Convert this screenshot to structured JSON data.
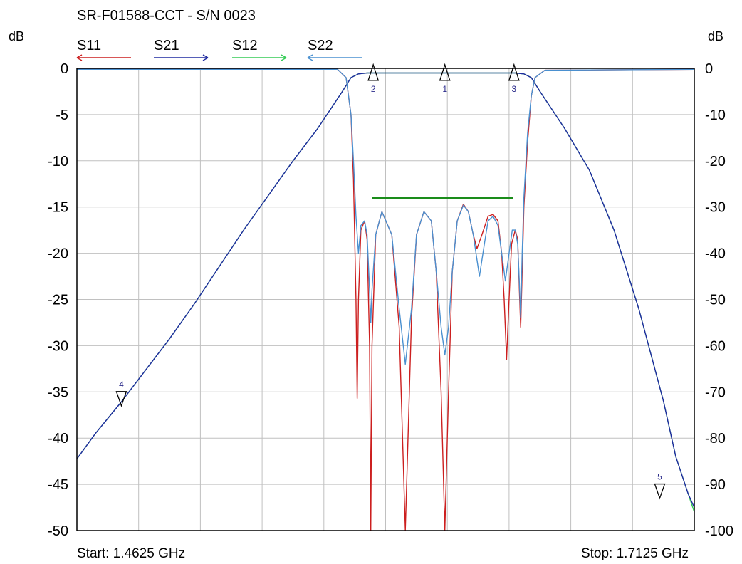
{
  "title": "SR-F01588-CCT - S/N 0023",
  "left_unit": "dB",
  "right_unit": "dB",
  "start_label": "Start: 1.4625 GHz",
  "stop_label": "Stop: 1.7125 GHz",
  "colors": {
    "S11": "#cc1f1f",
    "S21": "#1f2aa0",
    "S12": "#33cc55",
    "S22": "#4a90d0",
    "spec_line": "#1a8c1a",
    "grid": "#c0c0c0"
  },
  "chart_data": {
    "type": "line",
    "title": "SR-F01588-CCT - S/N 0023",
    "x_range_ghz": [
      1.4625,
      1.7125
    ],
    "y_left": {
      "label": "dB",
      "range": [
        -50,
        0
      ],
      "ticks": [
        "0",
        "-5",
        "-10",
        "-15",
        "-20",
        "-25",
        "-30",
        "-35",
        "-40",
        "-45",
        "-50"
      ]
    },
    "y_right": {
      "label": "dB",
      "range": [
        -100,
        0
      ],
      "ticks": [
        "0",
        "-10",
        "-20",
        "-30",
        "-40",
        "-50",
        "-60",
        "-70",
        "-80",
        "-90",
        "-100"
      ]
    },
    "grid": true,
    "legend": [
      {
        "name": "S11",
        "color": "#cc1f1f",
        "direction": "left"
      },
      {
        "name": "S21",
        "color": "#1f2aa0",
        "direction": "right"
      },
      {
        "name": "S12",
        "color": "#33cc55",
        "direction": "right"
      },
      {
        "name": "S22",
        "color": "#4a90d0",
        "direction": "left"
      }
    ],
    "series": [
      {
        "name": "S11",
        "axis": "left",
        "color": "#cc1f1f",
        "points": [
          [
            1.4625,
            -0.1
          ],
          [
            1.568,
            -0.1
          ],
          [
            1.5715,
            -1.0
          ],
          [
            1.5735,
            -5.0
          ],
          [
            1.5745,
            -12.0
          ],
          [
            1.5755,
            -25.0
          ],
          [
            1.576,
            -35.7
          ],
          [
            1.5765,
            -25.0
          ],
          [
            1.5775,
            -17.5
          ],
          [
            1.579,
            -16.5
          ],
          [
            1.58,
            -18.5
          ],
          [
            1.581,
            -30.0
          ],
          [
            1.5815,
            -50.0
          ],
          [
            1.582,
            -30.0
          ],
          [
            1.5835,
            -18.0
          ],
          [
            1.586,
            -15.5
          ],
          [
            1.59,
            -18.0
          ],
          [
            1.593,
            -28.0
          ],
          [
            1.5955,
            -50.0
          ],
          [
            1.598,
            -27.0
          ],
          [
            1.6,
            -18.0
          ],
          [
            1.603,
            -15.5
          ],
          [
            1.606,
            -16.5
          ],
          [
            1.608,
            -22.0
          ],
          [
            1.61,
            -35.0
          ],
          [
            1.6115,
            -50.0
          ],
          [
            1.613,
            -35.0
          ],
          [
            1.6145,
            -22.0
          ],
          [
            1.6165,
            -16.5
          ],
          [
            1.619,
            -14.7
          ],
          [
            1.621,
            -15.5
          ],
          [
            1.623,
            -18.0
          ],
          [
            1.6245,
            -19.5
          ],
          [
            1.6265,
            -18.0
          ],
          [
            1.629,
            -16.0
          ],
          [
            1.631,
            -15.8
          ],
          [
            1.633,
            -16.5
          ],
          [
            1.6345,
            -20.0
          ],
          [
            1.6355,
            -25.0
          ],
          [
            1.6365,
            -31.5
          ],
          [
            1.6375,
            -25.0
          ],
          [
            1.6385,
            -19.0
          ],
          [
            1.64,
            -17.5
          ],
          [
            1.641,
            -18.5
          ],
          [
            1.6418,
            -25.0
          ],
          [
            1.6422,
            -28.0
          ],
          [
            1.6428,
            -22.0
          ],
          [
            1.6435,
            -15.0
          ],
          [
            1.645,
            -8.0
          ],
          [
            1.6465,
            -3.0
          ],
          [
            1.648,
            -1.0
          ],
          [
            1.652,
            -0.2
          ],
          [
            1.7125,
            -0.1
          ]
        ]
      },
      {
        "name": "S22",
        "axis": "left",
        "color": "#4a90d0",
        "points": [
          [
            1.4625,
            -0.1
          ],
          [
            1.568,
            -0.1
          ],
          [
            1.5715,
            -1.0
          ],
          [
            1.5735,
            -5.0
          ],
          [
            1.5745,
            -10.0
          ],
          [
            1.5755,
            -16.0
          ],
          [
            1.5765,
            -20.0
          ],
          [
            1.5775,
            -17.0
          ],
          [
            1.579,
            -16.5
          ],
          [
            1.58,
            -18.0
          ],
          [
            1.581,
            -24.0
          ],
          [
            1.5815,
            -27.5
          ],
          [
            1.582,
            -24.0
          ],
          [
            1.5835,
            -18.0
          ],
          [
            1.586,
            -15.5
          ],
          [
            1.59,
            -18.0
          ],
          [
            1.593,
            -26.0
          ],
          [
            1.5955,
            -32.0
          ],
          [
            1.598,
            -26.0
          ],
          [
            1.6,
            -18.0
          ],
          [
            1.603,
            -15.5
          ],
          [
            1.606,
            -16.5
          ],
          [
            1.608,
            -22.0
          ],
          [
            1.61,
            -28.0
          ],
          [
            1.6115,
            -31.0
          ],
          [
            1.613,
            -28.0
          ],
          [
            1.6145,
            -22.0
          ],
          [
            1.6165,
            -16.5
          ],
          [
            1.619,
            -14.8
          ],
          [
            1.621,
            -15.5
          ],
          [
            1.623,
            -18.0
          ],
          [
            1.6255,
            -22.5
          ],
          [
            1.6275,
            -19.0
          ],
          [
            1.629,
            -16.5
          ],
          [
            1.631,
            -16.0
          ],
          [
            1.633,
            -17.0
          ],
          [
            1.6345,
            -20.0
          ],
          [
            1.636,
            -23.0
          ],
          [
            1.6375,
            -20.0
          ],
          [
            1.6388,
            -17.5
          ],
          [
            1.64,
            -17.5
          ],
          [
            1.641,
            -19.0
          ],
          [
            1.6418,
            -24.0
          ],
          [
            1.6422,
            -27.0
          ],
          [
            1.6428,
            -20.0
          ],
          [
            1.6435,
            -14.0
          ],
          [
            1.645,
            -7.0
          ],
          [
            1.6465,
            -3.0
          ],
          [
            1.648,
            -1.0
          ],
          [
            1.652,
            -0.2
          ],
          [
            1.7125,
            -0.1
          ]
        ]
      },
      {
        "name": "S21",
        "axis": "right",
        "color": "#1f2aa0",
        "points": [
          [
            1.4625,
            -84.5
          ],
          [
            1.47,
            -79.0
          ],
          [
            1.48,
            -72.5
          ],
          [
            1.49,
            -65.5
          ],
          [
            1.5,
            -58.5
          ],
          [
            1.51,
            -51.0
          ],
          [
            1.52,
            -43.0
          ],
          [
            1.53,
            -35.0
          ],
          [
            1.54,
            -27.5
          ],
          [
            1.55,
            -20.0
          ],
          [
            1.56,
            -13.0
          ],
          [
            1.565,
            -9.0
          ],
          [
            1.57,
            -5.0
          ],
          [
            1.5735,
            -2.0
          ],
          [
            1.5765,
            -1.2
          ],
          [
            1.58,
            -1.0
          ],
          [
            1.6,
            -1.0
          ],
          [
            1.62,
            -1.0
          ],
          [
            1.64,
            -1.0
          ],
          [
            1.6435,
            -1.2
          ],
          [
            1.6465,
            -2.0
          ],
          [
            1.65,
            -5.0
          ],
          [
            1.655,
            -9.0
          ],
          [
            1.66,
            -13.0
          ],
          [
            1.67,
            -22.0
          ],
          [
            1.68,
            -35.0
          ],
          [
            1.69,
            -52.0
          ],
          [
            1.7,
            -72.0
          ],
          [
            1.705,
            -84.0
          ],
          [
            1.71,
            -92.0
          ],
          [
            1.7125,
            -95.0
          ]
        ]
      },
      {
        "name": "S12",
        "axis": "right",
        "color": "#33cc55",
        "points": [
          [
            1.4625,
            -84.5
          ],
          [
            1.47,
            -79.0
          ],
          [
            1.48,
            -72.5
          ],
          [
            1.49,
            -65.5
          ],
          [
            1.5,
            -58.5
          ],
          [
            1.51,
            -51.0
          ],
          [
            1.52,
            -43.0
          ],
          [
            1.53,
            -35.0
          ],
          [
            1.54,
            -27.5
          ],
          [
            1.55,
            -20.0
          ],
          [
            1.56,
            -13.0
          ],
          [
            1.565,
            -9.0
          ],
          [
            1.57,
            -5.0
          ],
          [
            1.5735,
            -2.0
          ],
          [
            1.5765,
            -1.2
          ],
          [
            1.58,
            -1.0
          ],
          [
            1.6,
            -1.0
          ],
          [
            1.62,
            -1.0
          ],
          [
            1.64,
            -1.0
          ],
          [
            1.6435,
            -1.2
          ],
          [
            1.6465,
            -2.0
          ],
          [
            1.65,
            -5.0
          ],
          [
            1.655,
            -9.0
          ],
          [
            1.66,
            -13.0
          ],
          [
            1.67,
            -22.0
          ],
          [
            1.68,
            -35.0
          ],
          [
            1.69,
            -52.0
          ],
          [
            1.7,
            -72.0
          ],
          [
            1.705,
            -84.0
          ],
          [
            1.71,
            -92.0
          ],
          [
            1.7125,
            -96.0
          ]
        ]
      }
    ],
    "spec_lines": [
      {
        "name": "return-loss-spec",
        "x": [
          1.582,
          1.639
        ],
        "y_left": -14
      }
    ],
    "markers": [
      {
        "label": "1",
        "x_ghz": 1.6115,
        "y_left": -1.3
      },
      {
        "label": "2",
        "x_ghz": 1.5825,
        "y_left": -1.3
      },
      {
        "label": "3",
        "x_ghz": 1.6395,
        "y_left": -1.3
      },
      {
        "label": "4",
        "x_ghz": 1.4805,
        "y_left": -36.5
      },
      {
        "label": "5",
        "x_ghz": 1.6985,
        "y_left": -46.5
      }
    ]
  }
}
